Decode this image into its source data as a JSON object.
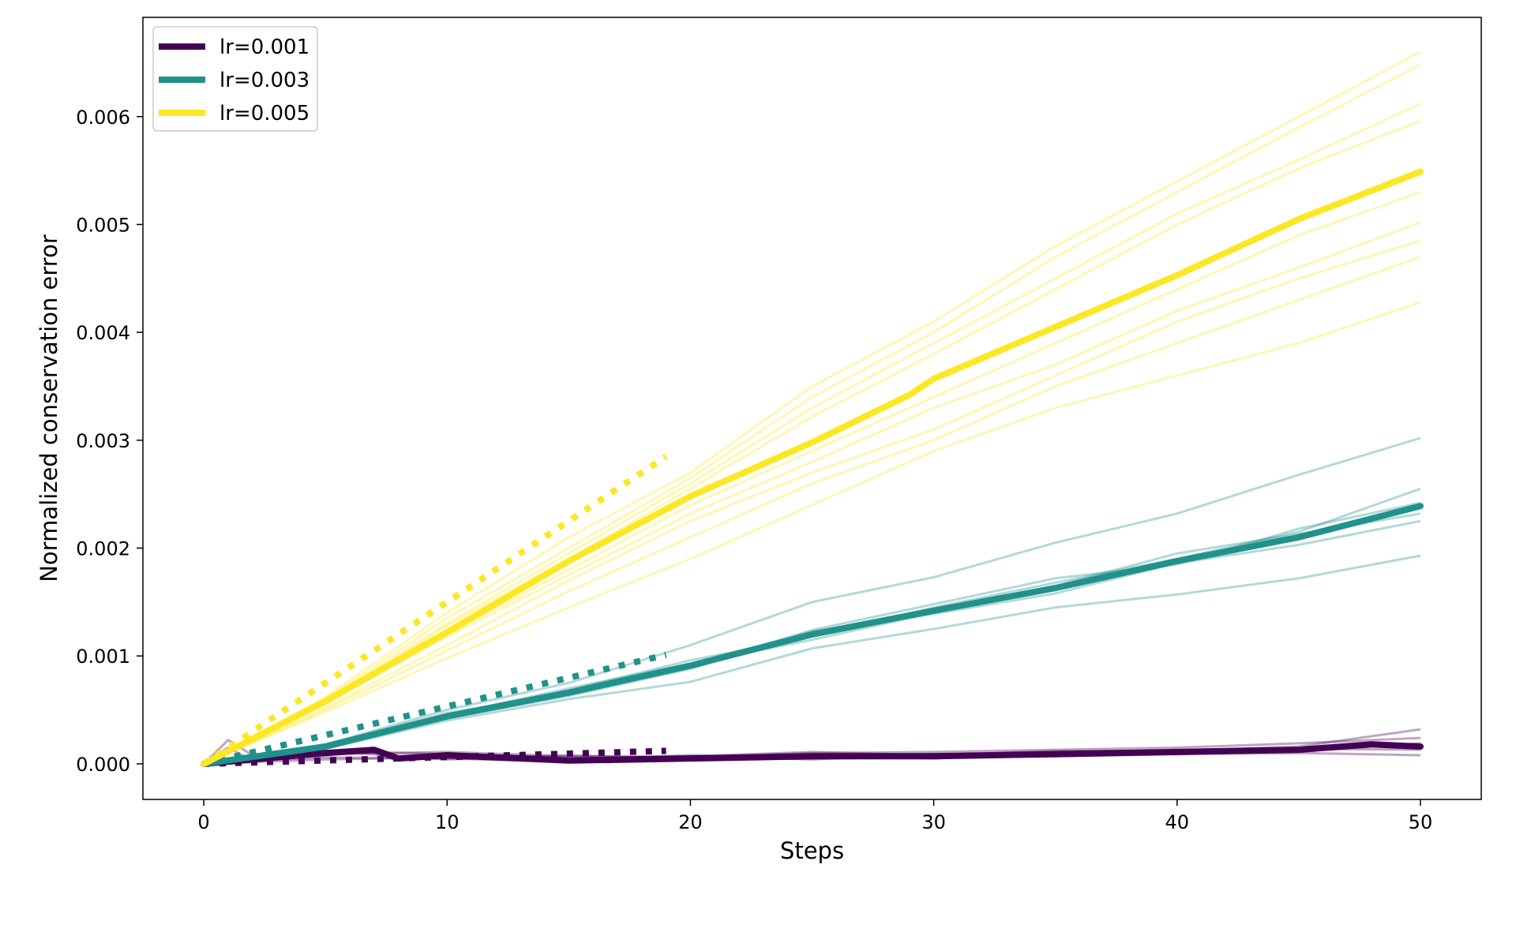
{
  "chart_data": {
    "type": "line",
    "title": "",
    "xlabel": "Steps",
    "ylabel": "Normalized conservation error",
    "xlim": [
      -2.5,
      52.5
    ],
    "ylim": [
      -0.00033,
      0.00692
    ],
    "xticks": [
      0,
      10,
      20,
      30,
      40,
      50
    ],
    "xtick_labels": [
      "0",
      "10",
      "20",
      "30",
      "40",
      "50"
    ],
    "yticks": [
      0,
      0.001,
      0.002,
      0.003,
      0.004,
      0.005,
      0.006
    ],
    "ytick_labels": [
      "0.000",
      "0.001",
      "0.002",
      "0.003",
      "0.004",
      "0.005",
      "0.006"
    ],
    "grid": false,
    "legend_position": "top-left",
    "series": [
      {
        "name": "lr=0.001",
        "color": "#440154",
        "mean": {
          "x": [
            0,
            5,
            7,
            8,
            10,
            15,
            20,
            25,
            30,
            35,
            40,
            45,
            48,
            50
          ],
          "y": [
            0,
            0.0001,
            0.00013,
            5e-05,
            8e-05,
            3e-05,
            5e-05,
            7e-05,
            7e-05,
            9e-05,
            0.00011,
            0.00013,
            0.00018,
            0.00016
          ]
        },
        "fit": {
          "x": [
            0,
            19
          ],
          "y": [
            0,
            0.00012
          ]
        },
        "runs": [
          {
            "x": [
              0,
              1,
              2,
              5,
              10,
              15,
              20,
              25,
              30,
              35,
              40,
              45,
              50
            ],
            "y": [
              0,
              0.00022,
              8e-05,
              0.00012,
              9e-05,
              6e-05,
              7e-05,
              0.00011,
              8e-05,
              0.00012,
              0.00012,
              0.00016,
              0.00032
            ]
          },
          {
            "x": [
              0,
              1,
              2,
              5,
              10,
              15,
              20,
              25,
              30,
              35,
              40,
              45,
              50
            ],
            "y": [
              0,
              0.00015,
              3e-05,
              6e-05,
              5e-05,
              2e-05,
              4e-05,
              5e-05,
              6e-05,
              7e-05,
              9e-05,
              0.0001,
              8e-05
            ]
          },
          {
            "x": [
              0,
              5,
              10,
              15,
              20,
              25,
              30,
              35,
              40,
              45,
              50
            ],
            "y": [
              0,
              9e-05,
              0.00011,
              7e-05,
              6e-05,
              0.0001,
              0.00011,
              0.00013,
              0.00015,
              0.00019,
              0.00024
            ]
          },
          {
            "x": [
              0,
              5,
              10,
              15,
              20,
              25,
              30,
              35,
              40,
              45,
              50
            ],
            "y": [
              0,
              4e-05,
              6e-05,
              4e-05,
              8e-05,
              4e-05,
              9e-05,
              8e-05,
              0.0001,
              0.00014,
              0.00013
            ]
          },
          {
            "x": [
              0,
              5,
              10,
              15,
              20,
              25,
              30,
              35,
              40,
              45,
              50
            ],
            "y": [
              0,
              0.00012,
              4e-05,
              8e-05,
              5e-05,
              8e-05,
              5e-05,
              0.0001,
              0.00012,
              0.00012,
              0.00019
            ]
          }
        ]
      },
      {
        "name": "lr=0.003",
        "color": "#21918c",
        "mean": {
          "x": [
            0,
            5,
            10,
            15,
            20,
            25,
            30,
            35,
            40,
            45,
            50
          ],
          "y": [
            0,
            0.00016,
            0.00044,
            0.00066,
            0.00091,
            0.0012,
            0.00142,
            0.00163,
            0.00188,
            0.0021,
            0.00239
          ]
        },
        "fit": {
          "x": [
            0,
            19
          ],
          "y": [
            0,
            0.00101
          ]
        },
        "runs": [
          {
            "x": [
              0,
              5,
              10,
              15,
              20,
              25,
              30,
              35,
              40,
              45,
              50
            ],
            "y": [
              0,
              0.00018,
              0.0005,
              0.00075,
              0.0011,
              0.0015,
              0.00173,
              0.00205,
              0.00232,
              0.00268,
              0.00302
            ]
          },
          {
            "x": [
              0,
              5,
              10,
              15,
              20,
              25,
              30,
              35,
              40,
              45,
              50
            ],
            "y": [
              0,
              0.00014,
              0.0004,
              0.0006,
              0.00076,
              0.00107,
              0.00125,
              0.00145,
              0.00157,
              0.00172,
              0.00193
            ]
          },
          {
            "x": [
              0,
              5,
              10,
              15,
              20,
              25,
              30,
              35,
              40,
              45,
              50
            ],
            "y": [
              0,
              0.00017,
              0.00046,
              0.00068,
              0.00096,
              0.00118,
              0.00145,
              0.00168,
              0.0019,
              0.00215,
              0.00255
            ]
          },
          {
            "x": [
              0,
              5,
              10,
              15,
              20,
              25,
              30,
              35,
              40,
              45,
              50
            ],
            "y": [
              0,
              0.00015,
              0.00042,
              0.00063,
              0.00088,
              0.00123,
              0.00139,
              0.00158,
              0.00186,
              0.00203,
              0.00225
            ]
          },
          {
            "x": [
              0,
              5,
              10,
              15,
              20,
              25,
              30,
              35,
              40,
              45,
              50
            ],
            "y": [
              0,
              0.00016,
              0.00045,
              0.0007,
              0.00093,
              0.00115,
              0.0014,
              0.00165,
              0.00195,
              0.00213,
              0.00232
            ]
          },
          {
            "x": [
              0,
              5,
              10,
              15,
              20,
              25,
              30,
              35,
              40,
              45,
              50
            ],
            "y": [
              0,
              0.00018,
              0.00047,
              0.00066,
              0.0009,
              0.00124,
              0.00148,
              0.00172,
              0.00185,
              0.00218,
              0.00242
            ]
          }
        ]
      },
      {
        "name": "lr=0.005",
        "color": "#fde725",
        "mean": {
          "x": [
            0,
            5,
            10,
            15,
            20,
            25,
            29,
            30,
            35,
            40,
            45,
            50
          ],
          "y": [
            0,
            0.00058,
            0.00122,
            0.00188,
            0.00248,
            0.00298,
            0.00342,
            0.00357,
            0.00405,
            0.00453,
            0.00505,
            0.00549
          ]
        },
        "fit": {
          "x": [
            0,
            19
          ],
          "y": [
            0,
            0.00285
          ]
        },
        "runs": [
          {
            "x": [
              0,
              5,
              10,
              15,
              20,
              25,
              30,
              35,
              40,
              45,
              50
            ],
            "y": [
              0,
              0.00062,
              0.0014,
              0.0021,
              0.0027,
              0.0035,
              0.0041,
              0.0048,
              0.0054,
              0.006,
              0.0066
            ]
          },
          {
            "x": [
              0,
              5,
              10,
              15,
              20,
              25,
              30,
              35,
              40,
              45,
              50
            ],
            "y": [
              0,
              0.0006,
              0.00135,
              0.002,
              0.00265,
              0.0034,
              0.004,
              0.0047,
              0.0053,
              0.0059,
              0.00648
            ]
          },
          {
            "x": [
              0,
              5,
              10,
              15,
              20,
              25,
              30,
              35,
              40,
              45,
              50
            ],
            "y": [
              0,
              0.00059,
              0.0013,
              0.00195,
              0.0026,
              0.0033,
              0.0039,
              0.0045,
              0.0051,
              0.0056,
              0.00612
            ]
          },
          {
            "x": [
              0,
              5,
              10,
              15,
              20,
              25,
              30,
              35,
              40,
              45,
              50
            ],
            "y": [
              0,
              0.00057,
              0.00128,
              0.0019,
              0.00255,
              0.00322,
              0.0038,
              0.0044,
              0.005,
              0.00552,
              0.00596
            ]
          },
          {
            "x": [
              0,
              5,
              10,
              15,
              20,
              25,
              30,
              35,
              40,
              45,
              50
            ],
            "y": [
              0,
              0.00055,
              0.0012,
              0.0018,
              0.0024,
              0.0029,
              0.0034,
              0.0039,
              0.0044,
              0.0049,
              0.0053
            ]
          },
          {
            "x": [
              0,
              5,
              10,
              15,
              20,
              25,
              30,
              35,
              40,
              45,
              50
            ],
            "y": [
              0,
              0.00056,
              0.00118,
              0.00175,
              0.00232,
              0.0028,
              0.0033,
              0.0037,
              0.0042,
              0.0046,
              0.00502
            ]
          },
          {
            "x": [
              0,
              5,
              10,
              15,
              20,
              25,
              30,
              35,
              40,
              45,
              50
            ],
            "y": [
              0,
              0.00052,
              0.0011,
              0.0017,
              0.00225,
              0.0027,
              0.0031,
              0.0036,
              0.0041,
              0.0045,
              0.00485
            ]
          },
          {
            "x": [
              0,
              5,
              10,
              15,
              20,
              25,
              30,
              35,
              40,
              45,
              50
            ],
            "y": [
              0,
              0.0005,
              0.00105,
              0.0016,
              0.0021,
              0.0026,
              0.003,
              0.0035,
              0.0039,
              0.0043,
              0.0047
            ]
          },
          {
            "x": [
              0,
              5,
              10,
              15,
              20,
              25,
              30,
              35,
              40,
              45,
              50
            ],
            "y": [
              0,
              0.00048,
              0.00098,
              0.00145,
              0.0019,
              0.0024,
              0.0029,
              0.0033,
              0.0036,
              0.0039,
              0.00428
            ]
          }
        ]
      }
    ]
  }
}
